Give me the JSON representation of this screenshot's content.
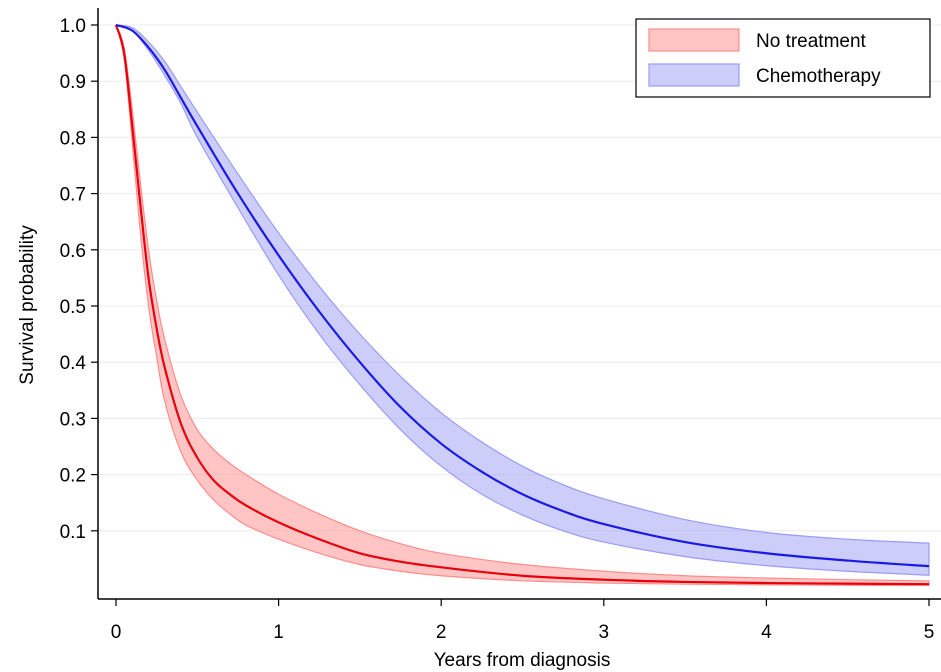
{
  "chart_data": {
    "type": "area",
    "title": "",
    "xlabel": "Years from diagnosis",
    "ylabel": "Survival probability",
    "xlim": [
      0,
      5
    ],
    "ylim": [
      0,
      1.0
    ],
    "x_ticks": [
      "0",
      "1",
      "2",
      "3",
      "4",
      "5"
    ],
    "y_ticks": [
      "0.1",
      "0.2",
      "0.3",
      "0.4",
      "0.5",
      "0.6",
      "0.7",
      "0.8",
      "0.9",
      "1.0"
    ],
    "grid": true,
    "legend_position": "top-right",
    "series": [
      {
        "name": "No treatment",
        "line_color": "#e8000b",
        "band_color": "#ff8c8c",
        "x": [
          0,
          0.05,
          0.1,
          0.15,
          0.2,
          0.25,
          0.3,
          0.4,
          0.5,
          0.6,
          0.7,
          0.8,
          1.0,
          1.25,
          1.5,
          1.75,
          2.0,
          2.5,
          3.0,
          3.5,
          4.0,
          4.5,
          5.0
        ],
        "y": [
          1.0,
          0.95,
          0.82,
          0.68,
          0.55,
          0.46,
          0.39,
          0.29,
          0.23,
          0.19,
          0.165,
          0.145,
          0.115,
          0.085,
          0.06,
          0.045,
          0.035,
          0.02,
          0.013,
          0.009,
          0.007,
          0.006,
          0.005
        ],
        "lower": [
          1.0,
          0.94,
          0.79,
          0.63,
          0.5,
          0.41,
          0.33,
          0.24,
          0.19,
          0.155,
          0.13,
          0.11,
          0.085,
          0.06,
          0.04,
          0.028,
          0.02,
          0.011,
          0.007,
          0.005,
          0.004,
          0.003,
          0.003
        ],
        "upper": [
          1.0,
          0.96,
          0.85,
          0.72,
          0.6,
          0.51,
          0.44,
          0.34,
          0.28,
          0.245,
          0.22,
          0.2,
          0.165,
          0.13,
          0.1,
          0.077,
          0.06,
          0.04,
          0.028,
          0.02,
          0.016,
          0.013,
          0.011
        ]
      },
      {
        "name": "Chemotherapy",
        "line_color": "#1a1ae6",
        "band_color": "#9b9bf5",
        "x": [
          0,
          0.1,
          0.2,
          0.3,
          0.4,
          0.5,
          0.75,
          1.0,
          1.25,
          1.5,
          1.75,
          2.0,
          2.25,
          2.5,
          2.75,
          3.0,
          3.5,
          4.0,
          4.5,
          5.0
        ],
        "y": [
          1.0,
          0.99,
          0.96,
          0.92,
          0.87,
          0.82,
          0.7,
          0.59,
          0.49,
          0.4,
          0.32,
          0.255,
          0.205,
          0.165,
          0.135,
          0.112,
          0.08,
          0.06,
          0.047,
          0.037
        ],
        "lower": [
          1.0,
          0.99,
          0.955,
          0.91,
          0.86,
          0.8,
          0.675,
          0.555,
          0.45,
          0.36,
          0.28,
          0.215,
          0.165,
          0.128,
          0.1,
          0.08,
          0.054,
          0.038,
          0.028,
          0.021
        ],
        "upper": [
          1.0,
          0.995,
          0.97,
          0.935,
          0.89,
          0.845,
          0.735,
          0.63,
          0.535,
          0.45,
          0.375,
          0.31,
          0.258,
          0.215,
          0.182,
          0.157,
          0.12,
          0.097,
          0.085,
          0.078
        ]
      }
    ]
  }
}
